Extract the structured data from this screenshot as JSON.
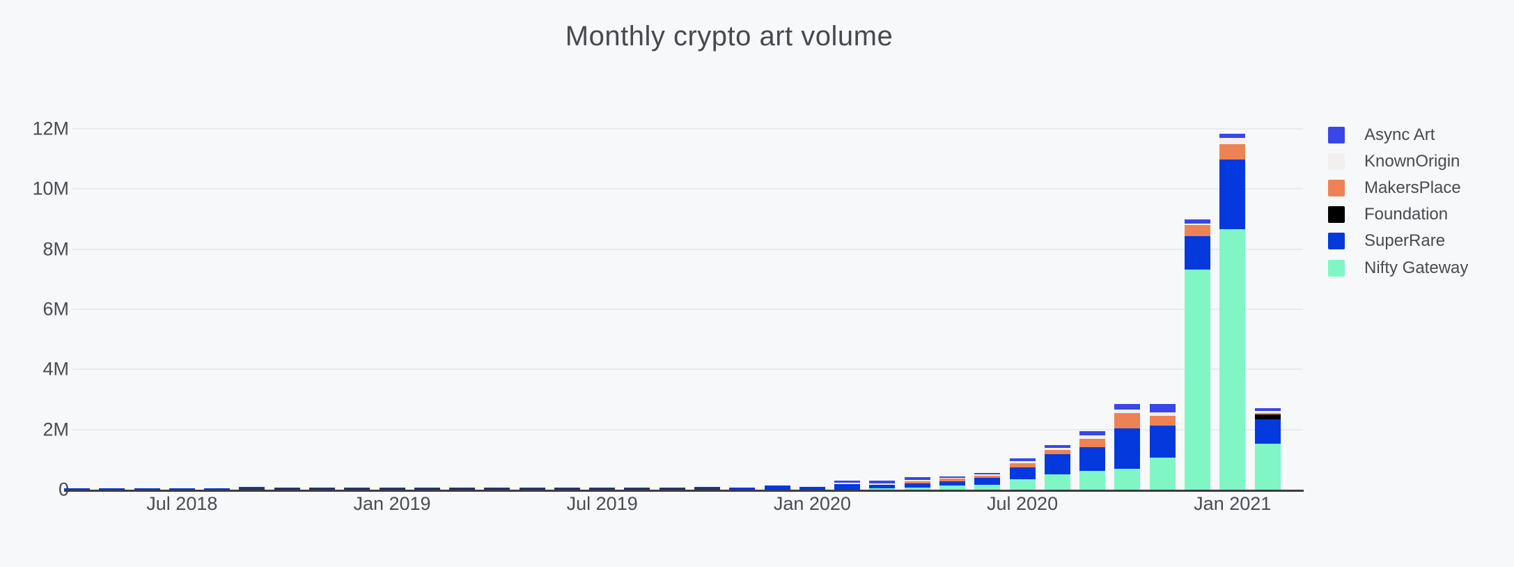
{
  "title": "Monthly crypto art volume",
  "colors": {
    "background": "#f7f8fa",
    "gridline": "#e9eaee",
    "axis_line": "#3c3c43",
    "text": "#4b4b52",
    "title_text": "#48484f",
    "near_zero_dash": "#32323a"
  },
  "chart_data": {
    "type": "bar",
    "stacked": true,
    "title": "Monthly crypto art volume",
    "xlabel": "",
    "ylabel": "",
    "unit": "M",
    "ylim": [
      0,
      12
    ],
    "grid": "horizontal",
    "legend_position": "right",
    "y_tick_values": [
      0,
      2,
      4,
      6,
      8,
      10,
      12
    ],
    "y_tick_labels": [
      "0",
      "2M",
      "4M",
      "6M",
      "8M",
      "10M",
      "12M"
    ],
    "x_tick_labels": [
      {
        "label": "Jul 2018",
        "month_index": 3
      },
      {
        "label": "Jan 2019",
        "month_index": 9
      },
      {
        "label": "Jul 2019",
        "month_index": 15
      },
      {
        "label": "Jan 2020",
        "month_index": 21
      },
      {
        "label": "Jul 2020",
        "month_index": 27
      },
      {
        "label": "Jan 2021",
        "month_index": 33
      }
    ],
    "categories": [
      "Apr 2018",
      "May 2018",
      "Jun 2018",
      "Jul 2018",
      "Aug 2018",
      "Sep 2018",
      "Oct 2018",
      "Nov 2018",
      "Dec 2018",
      "Jan 2019",
      "Feb 2019",
      "Mar 2019",
      "Apr 2019",
      "May 2019",
      "Jun 2019",
      "Jul 2019",
      "Aug 2019",
      "Sep 2019",
      "Oct 2019",
      "Nov 2019",
      "Dec 2019",
      "Jan 2020",
      "Feb 2020",
      "Mar 2020",
      "Apr 2020",
      "May 2020",
      "Jun 2020",
      "Jul 2020",
      "Aug 2020",
      "Sep 2020",
      "Oct 2020",
      "Nov 2020",
      "Dec 2020",
      "Jan 2021",
      "Feb 2021"
    ],
    "stack_order_bottom_to_top": [
      "Nifty Gateway",
      "SuperRare",
      "Foundation",
      "MakersPlace",
      "KnownOrigin",
      "Async Art"
    ],
    "series": [
      {
        "name": "Nifty Gateway",
        "color": "#80f6c5",
        "values": [
          0,
          0,
          0,
          0,
          0,
          0,
          0,
          0,
          0,
          0,
          0,
          0,
          0,
          0,
          0,
          0,
          0,
          0,
          0,
          0,
          0,
          0,
          0,
          0.04,
          0.08,
          0.15,
          0.17,
          0.34,
          0.5,
          0.63,
          0.69,
          1.06,
          7.32,
          8.67,
          1.54
        ]
      },
      {
        "name": "SuperRare",
        "color": "#0339dd",
        "values": [
          0.05,
          0.05,
          0.05,
          0.05,
          0.05,
          0.04,
          0.02,
          0.02,
          0.02,
          0.02,
          0.02,
          0.02,
          0.02,
          0.02,
          0.02,
          0.02,
          0.02,
          0.02,
          0.03,
          0.07,
          0.13,
          0.1,
          0.18,
          0.12,
          0.14,
          0.13,
          0.22,
          0.4,
          0.68,
          0.78,
          1.35,
          1.08,
          1.12,
          2.32,
          0.81
        ]
      },
      {
        "name": "Foundation",
        "color": "#000000",
        "values": [
          0,
          0,
          0,
          0,
          0,
          0,
          0,
          0,
          0,
          0,
          0,
          0,
          0,
          0,
          0,
          0,
          0,
          0,
          0,
          0,
          0,
          0,
          0,
          0,
          0,
          0,
          0,
          0,
          0,
          0,
          0,
          0,
          0,
          0,
          0.15
        ]
      },
      {
        "name": "MakersPlace",
        "color": "#ed8354",
        "values": [
          0,
          0,
          0,
          0,
          0,
          0,
          0,
          0,
          0,
          0,
          0,
          0,
          0,
          0,
          0,
          0,
          0,
          0,
          0,
          0,
          0,
          0,
          0,
          0.01,
          0.06,
          0.08,
          0.08,
          0.15,
          0.14,
          0.28,
          0.5,
          0.31,
          0.37,
          0.49,
          0.05
        ]
      },
      {
        "name": "KnownOrigin",
        "color": "#f1f0ee",
        "values": [
          0,
          0,
          0,
          0,
          0,
          0,
          0,
          0,
          0,
          0,
          0,
          0,
          0,
          0,
          0,
          0,
          0,
          0,
          0,
          0.01,
          0.01,
          0.01,
          0.05,
          0.05,
          0.05,
          0.03,
          0.03,
          0.06,
          0.06,
          0.11,
          0.12,
          0.12,
          0.05,
          0.23,
          0.08
        ]
      },
      {
        "name": "Async Art",
        "color": "#3a46e8",
        "values": [
          0,
          0,
          0,
          0,
          0,
          0,
          0,
          0,
          0,
          0,
          0,
          0,
          0,
          0,
          0,
          0,
          0,
          0,
          0,
          0,
          0,
          0,
          0.08,
          0.08,
          0.08,
          0.06,
          0.06,
          0.09,
          0.1,
          0.14,
          0.19,
          0.28,
          0.12,
          0.12,
          0.08
        ]
      }
    ],
    "legend": [
      {
        "label": "Async Art",
        "color": "#3a46e8"
      },
      {
        "label": "KnownOrigin",
        "color": "#f1f0ee"
      },
      {
        "label": "MakersPlace",
        "color": "#ed8354"
      },
      {
        "label": "Foundation",
        "color": "#000000"
      },
      {
        "label": "SuperRare",
        "color": "#0339dd"
      },
      {
        "label": "Nifty Gateway",
        "color": "#80f6c5"
      }
    ]
  }
}
